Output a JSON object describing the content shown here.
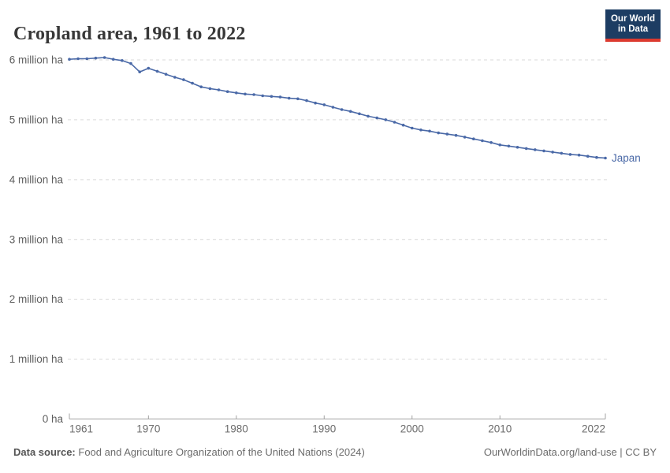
{
  "header": {
    "title": "Cropland area, 1961 to 2022"
  },
  "logo": {
    "line1": "Our World",
    "line2": "in Data",
    "bg_color": "#1d3d63",
    "accent_color": "#dc3a2f",
    "text_color": "#ffffff"
  },
  "chart_data": {
    "type": "line",
    "title": "Cropland area, 1961 to 2022",
    "unit": "million ha",
    "xlim": [
      1961,
      2022
    ],
    "ylim": [
      0,
      6
    ],
    "x_ticks": [
      1961,
      1970,
      1980,
      1990,
      2000,
      2010,
      2022
    ],
    "y_ticks": [
      0,
      1,
      2,
      3,
      4,
      5,
      6
    ],
    "y_tick_labels": [
      "0 ha",
      "1 million ha",
      "2 million ha",
      "3 million ha",
      "4 million ha",
      "5 million ha",
      "6 million ha"
    ],
    "grid": "dashed horizontal gridlines",
    "legend_position": "end-of-line label",
    "series": [
      {
        "name": "Japan",
        "color": "#4a69a7",
        "x_start": 1961,
        "values": [
          6.01,
          6.02,
          6.02,
          6.03,
          6.04,
          6.01,
          5.99,
          5.94,
          5.8,
          5.86,
          5.81,
          5.76,
          5.71,
          5.67,
          5.61,
          5.55,
          5.52,
          5.5,
          5.47,
          5.45,
          5.43,
          5.42,
          5.4,
          5.39,
          5.38,
          5.36,
          5.35,
          5.32,
          5.28,
          5.25,
          5.21,
          5.17,
          5.14,
          5.1,
          5.06,
          5.03,
          5.0,
          4.96,
          4.91,
          4.86,
          4.83,
          4.81,
          4.78,
          4.76,
          4.74,
          4.71,
          4.68,
          4.65,
          4.62,
          4.58,
          4.56,
          4.54,
          4.52,
          4.5,
          4.48,
          4.46,
          4.44,
          4.42,
          4.41,
          4.39,
          4.37,
          4.36
        ]
      }
    ],
    "axis_colors": {
      "gridline": "#d9d9d9",
      "axis_line": "#a3a3a3",
      "y_label": "#5f5f5f",
      "x_label": "#6b6b6b"
    }
  },
  "footer": {
    "source_label": "Data source:",
    "source_text": "Food and Agriculture Organization of the United Nations (2024)",
    "right_text": "OurWorldinData.org/land-use | CC BY"
  }
}
